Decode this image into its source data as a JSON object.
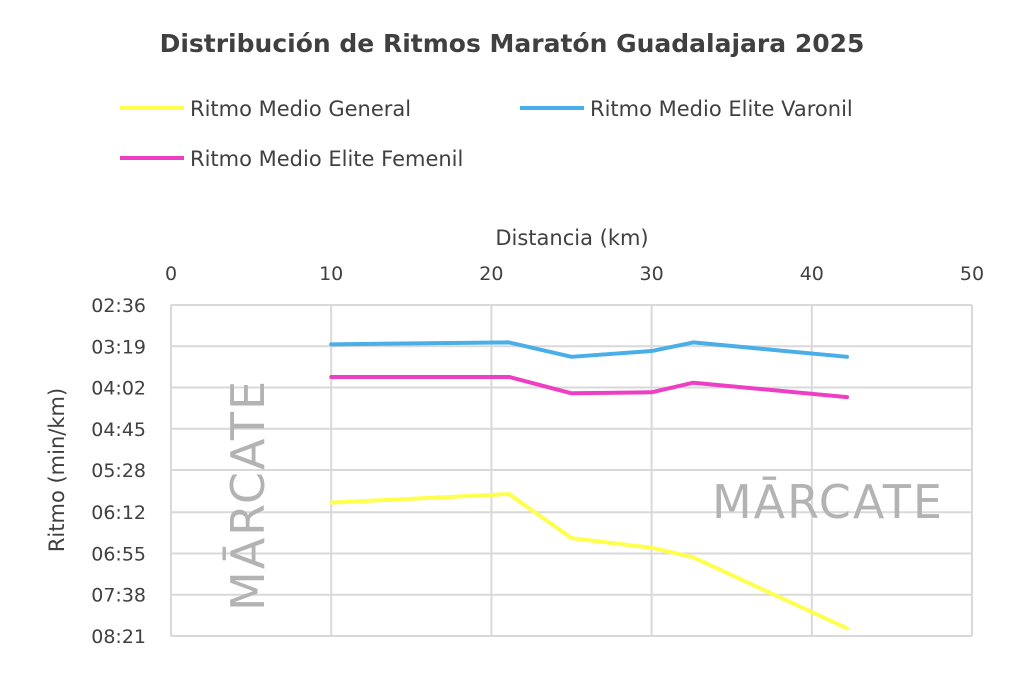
{
  "chart_data": {
    "type": "line",
    "title": "Distribución de Ritmos Maratón Guadalajara 2025",
    "xlabel": "Distancia (km)",
    "ylabel": "Ritmo (min/km)",
    "xlim": [
      0,
      50
    ],
    "x_ticks": [
      "0",
      "10",
      "20",
      "30",
      "40",
      "50"
    ],
    "ylim_seconds": [
      156,
      501
    ],
    "y_inverted": true,
    "y_ticks": [
      "02:36",
      "03:19",
      "04:02",
      "04:45",
      "05:28",
      "06:12",
      "06:55",
      "07:38",
      "08:21"
    ],
    "x_axis_position": "top",
    "grid": true,
    "legend_position": "top",
    "x": [
      10,
      21.1,
      25,
      30,
      32.6,
      42.2
    ],
    "series": [
      {
        "name": "Ritmo Medio General",
        "color": "#ffff4d",
        "values": [
          "06:02",
          "05:53",
          "06:39",
          "06:49",
          "06:59",
          "08:13"
        ]
      },
      {
        "name": "Ritmo Medio Elite Varonil",
        "color": "#4aaee8",
        "values": [
          "03:17",
          "03:15",
          "03:30",
          "03:24",
          "03:15",
          "03:30"
        ]
      },
      {
        "name": "Ritmo Medio Elite Femenil",
        "color": "#ee3fc4",
        "values": [
          "03:51",
          "03:51",
          "04:08",
          "04:07",
          "03:57",
          "04:12"
        ]
      }
    ]
  },
  "watermark": "MĀRCATE"
}
